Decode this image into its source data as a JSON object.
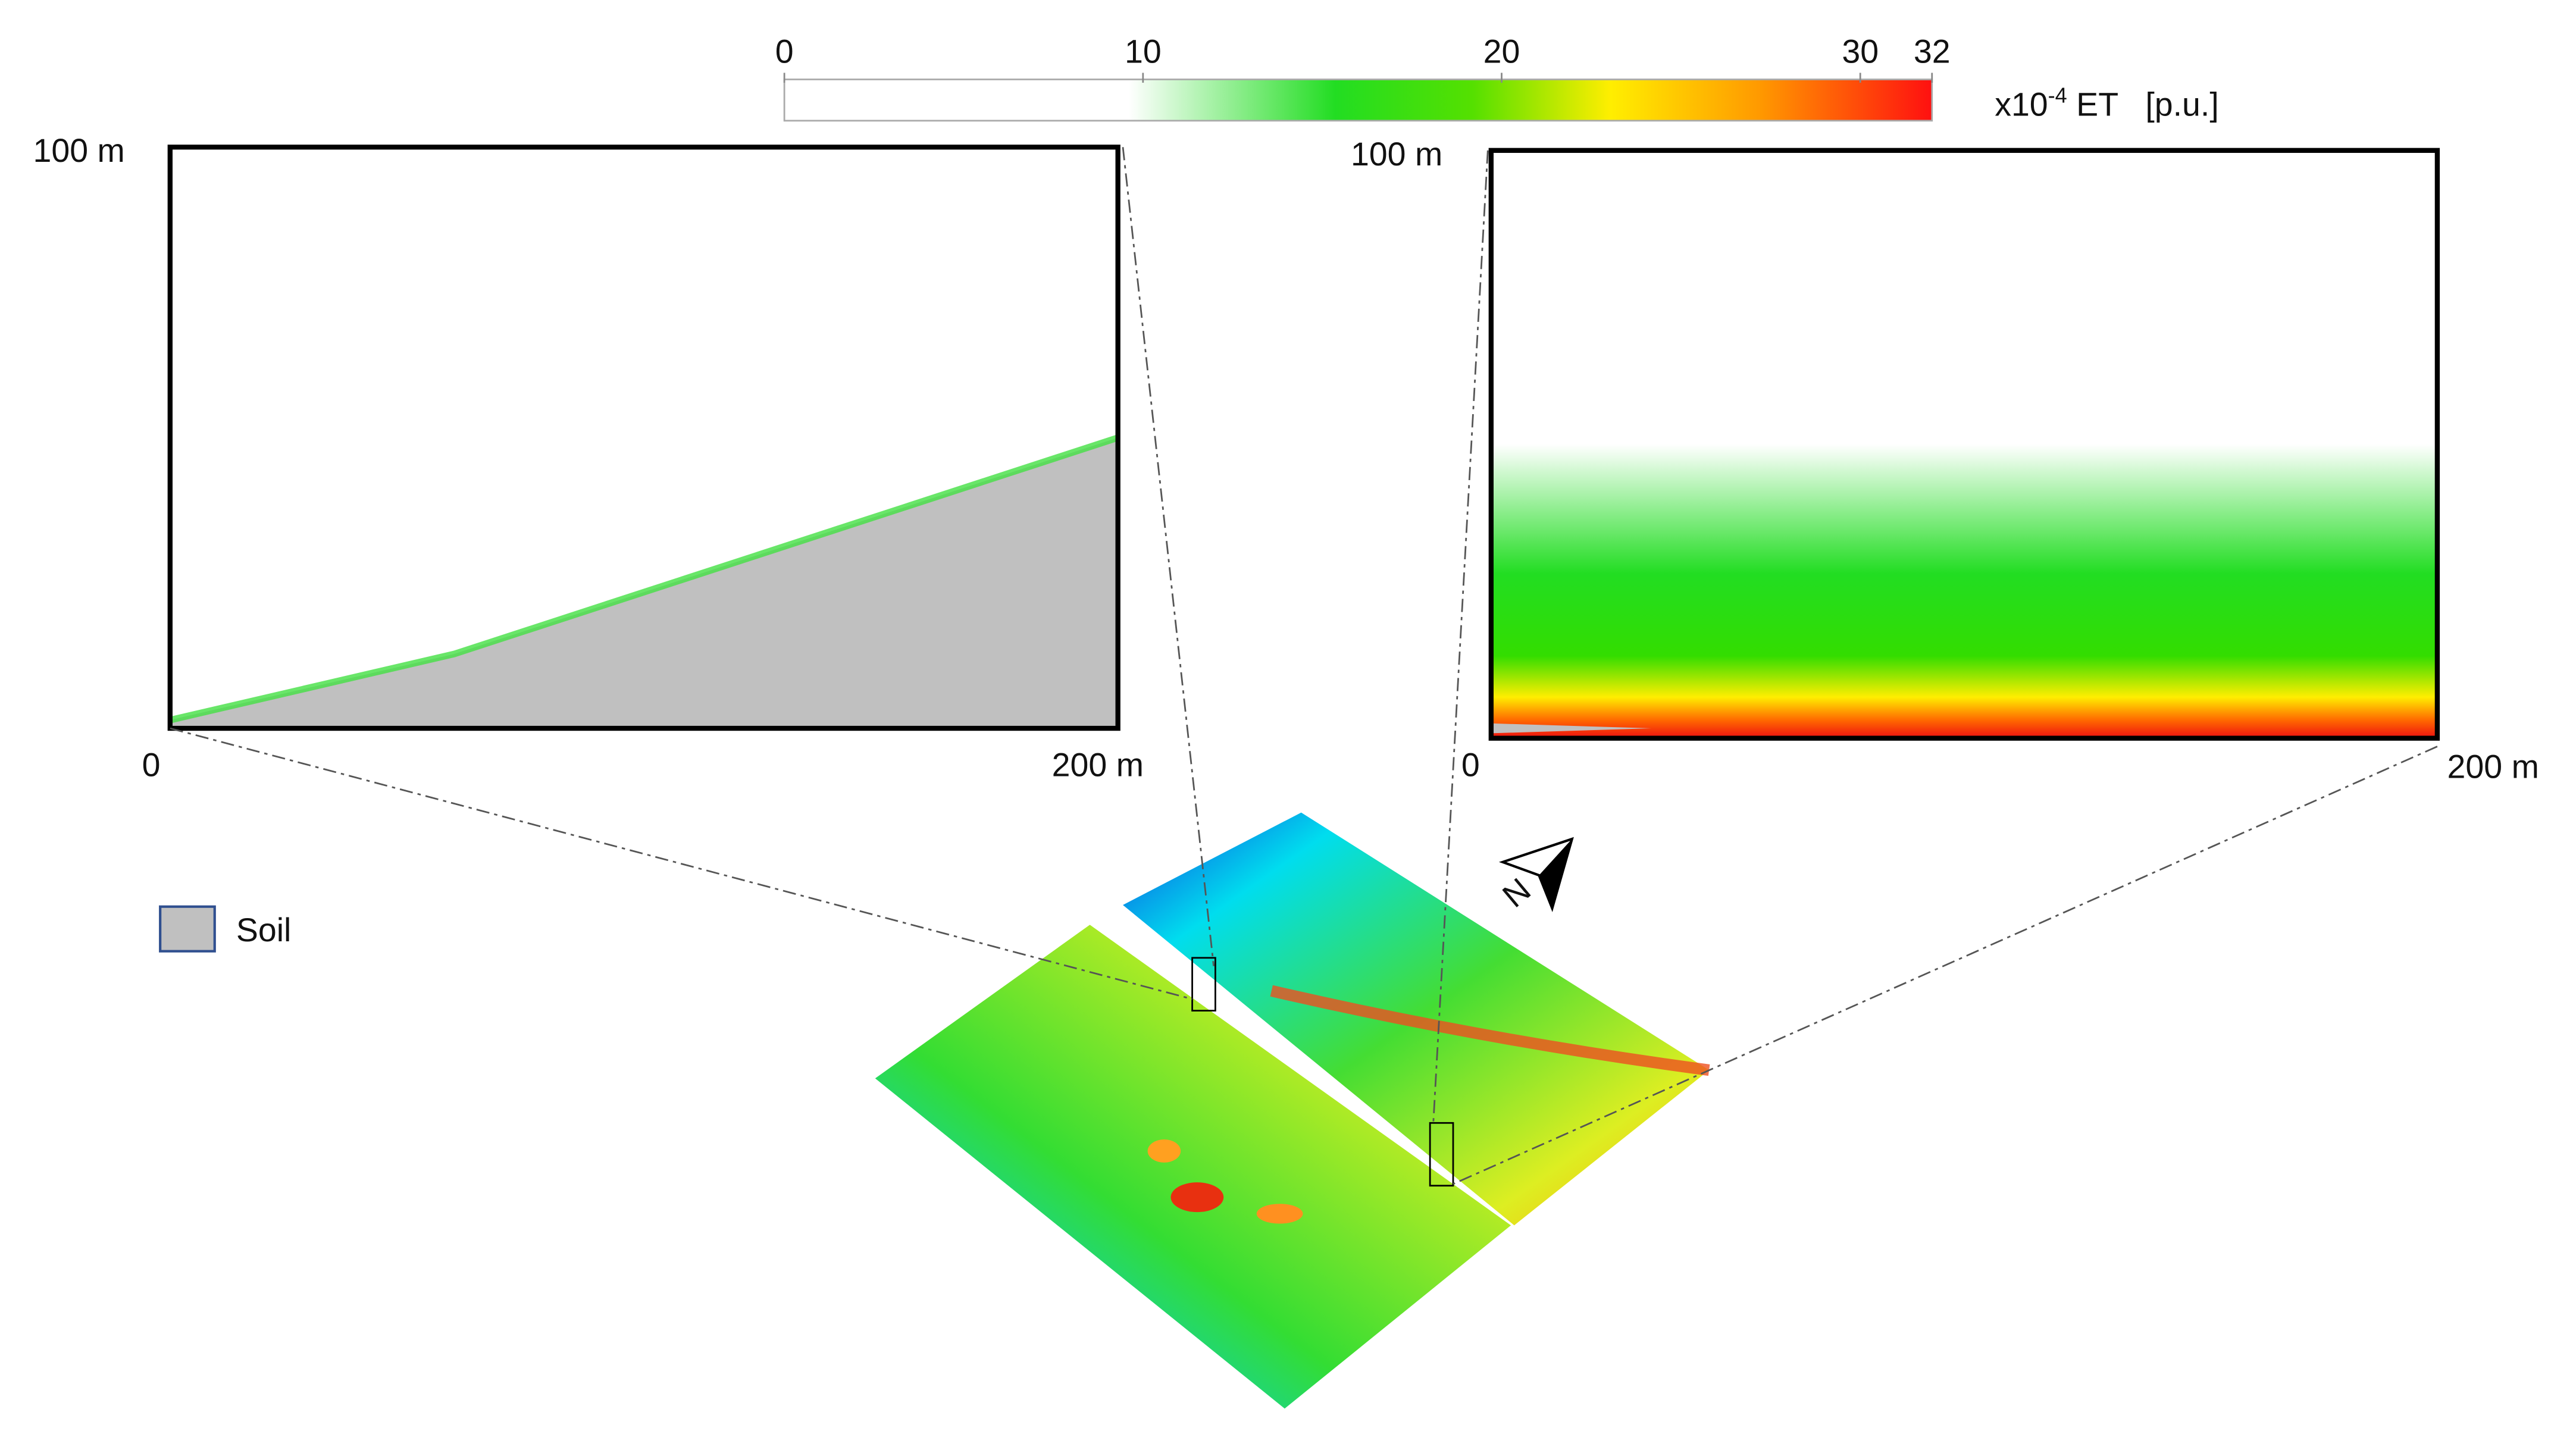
{
  "colorbar": {
    "ticks": [
      0,
      10,
      20,
      30,
      32
    ],
    "lim": [
      0,
      32
    ],
    "unit_prefix": "x10",
    "exponent": "-4",
    "unit": " ET   [p.u.]"
  },
  "left_panel": {
    "y_top": "100 m",
    "x_left": "0",
    "x_right": "200 m"
  },
  "right_panel": {
    "y_top": "100 m",
    "x_left": "0",
    "x_right": "200 m"
  },
  "legend": {
    "label": "Soil"
  },
  "compass": "N"
}
